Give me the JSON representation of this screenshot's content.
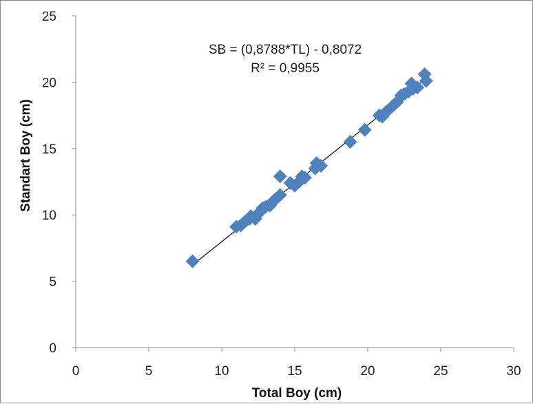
{
  "chart_data": {
    "type": "scatter",
    "xlabel": "Total Boy (cm)",
    "ylabel": "Standart Boy (cm)",
    "xlim": [
      0,
      30
    ],
    "ylim": [
      0,
      25
    ],
    "xticks": [
      "0",
      "5",
      "10",
      "15",
      "20",
      "25",
      "30"
    ],
    "yticks": [
      "0",
      "5",
      "10",
      "15",
      "20",
      "25"
    ],
    "grid": false,
    "legend": "none",
    "marker_color": "#4F81BD",
    "trendline": {
      "slope": 0.8788,
      "intercept": -0.8072,
      "x_range": [
        8.0,
        24.0
      ],
      "color": "#000000"
    },
    "annotations": {
      "equation": "SB = (0,8788*TL) - 0,8072",
      "r_squared": "R² = 0,9955"
    },
    "points": [
      [
        8.0,
        6.5
      ],
      [
        11.0,
        9.1
      ],
      [
        11.3,
        9.2
      ],
      [
        11.6,
        9.5
      ],
      [
        11.9,
        9.7
      ],
      [
        12.0,
        9.9
      ],
      [
        12.3,
        9.7
      ],
      [
        12.6,
        10.2
      ],
      [
        12.8,
        10.5
      ],
      [
        13.0,
        10.6
      ],
      [
        13.3,
        10.7
      ],
      [
        13.5,
        11.0
      ],
      [
        13.7,
        11.2
      ],
      [
        14.0,
        11.5
      ],
      [
        14.0,
        12.9
      ],
      [
        14.7,
        12.4
      ],
      [
        15.0,
        12.2
      ],
      [
        15.3,
        12.5
      ],
      [
        15.5,
        12.9
      ],
      [
        15.7,
        12.8
      ],
      [
        16.4,
        13.5
      ],
      [
        16.5,
        13.9
      ],
      [
        16.8,
        13.7
      ],
      [
        18.8,
        15.5
      ],
      [
        19.8,
        16.4
      ],
      [
        20.8,
        17.5
      ],
      [
        21.0,
        17.4
      ],
      [
        21.3,
        17.8
      ],
      [
        21.7,
        18.2
      ],
      [
        22.0,
        18.5
      ],
      [
        22.3,
        19.0
      ],
      [
        22.5,
        19.1
      ],
      [
        22.8,
        19.3
      ],
      [
        23.0,
        19.9
      ],
      [
        23.1,
        19.5
      ],
      [
        23.4,
        19.6
      ],
      [
        23.9,
        20.6
      ],
      [
        24.0,
        20.1
      ]
    ]
  }
}
